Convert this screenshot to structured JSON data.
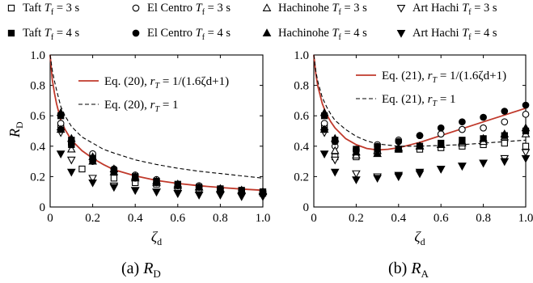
{
  "legend": [
    {
      "marker": "square-open",
      "name": "Taft",
      "suffix": " = 3 s"
    },
    {
      "marker": "circle-open",
      "name": "El Centro",
      "suffix": " = 3 s"
    },
    {
      "marker": "triangle-up-open",
      "name": "Hachinohe",
      "suffix": " = 3 s"
    },
    {
      "marker": "triangle-down-open",
      "name": "Art Hachi",
      "suffix": " = 3 s"
    },
    {
      "marker": "square-filled",
      "name": "Taft",
      "suffix": " = 4 s"
    },
    {
      "marker": "circle-filled",
      "name": "El Centro",
      "suffix": " = 4 s"
    },
    {
      "marker": "triangle-up-filled",
      "name": "Hachinohe",
      "suffix": " = 4 s"
    },
    {
      "marker": "triangle-down-filled",
      "name": "Art Hachi",
      "suffix": " = 4 s"
    }
  ],
  "legend_var": "T",
  "legend_sub": "f",
  "colors": {
    "curve": "#c0392b",
    "dashed": "#000000",
    "markers": "#000000"
  },
  "chart_data": [
    {
      "type": "line",
      "caption": "(a) ",
      "caption_sym": "R",
      "caption_sub": "D",
      "ylabel": "R",
      "ylabel_sub": "D",
      "xlabel": "ζ",
      "xlabel_sub": "d",
      "xlim": [
        0,
        1.0
      ],
      "ylim": [
        0,
        1.0
      ],
      "xticks": [
        0,
        0.2,
        0.4,
        0.6,
        0.8,
        1.0
      ],
      "xtick_labels": [
        "0",
        "0.2",
        "0.4",
        "0.6",
        "0.8",
        "1.0"
      ],
      "yticks": [
        0,
        0.2,
        0.4,
        0.6,
        0.8,
        1.0
      ],
      "ytick_labels": [
        "0",
        "0.2",
        "0.4",
        "0.6",
        "0.8",
        "1.0"
      ],
      "annotations": [
        {
          "eq": "Eq. (20),",
          "cond": "1/(1.6ζd+1)",
          "style": "solid"
        },
        {
          "eq": "Eq. (20),",
          "cond": "1",
          "style": "dashed"
        }
      ],
      "curves": [
        {
          "style": "solid",
          "x": [
            0,
            0.01,
            0.02,
            0.03,
            0.05,
            0.07,
            0.1,
            0.15,
            0.2,
            0.25,
            0.3,
            0.4,
            0.5,
            0.6,
            0.7,
            0.8,
            0.9,
            1.0
          ],
          "y": [
            1.0,
            0.84,
            0.75,
            0.68,
            0.57,
            0.51,
            0.44,
            0.37,
            0.32,
            0.28,
            0.245,
            0.205,
            0.175,
            0.155,
            0.14,
            0.128,
            0.118,
            0.11
          ]
        },
        {
          "style": "dashed",
          "x": [
            0,
            0.01,
            0.02,
            0.03,
            0.05,
            0.07,
            0.1,
            0.15,
            0.2,
            0.25,
            0.3,
            0.4,
            0.5,
            0.6,
            0.7,
            0.8,
            0.9,
            1.0
          ],
          "y": [
            1.0,
            0.9,
            0.83,
            0.77,
            0.66,
            0.6,
            0.53,
            0.46,
            0.42,
            0.38,
            0.355,
            0.31,
            0.28,
            0.255,
            0.235,
            0.22,
            0.205,
            0.19
          ]
        }
      ],
      "series": [
        {
          "name": "Taft Tf = 3 s",
          "marker": "square-open",
          "x": [
            0.05,
            0.1,
            0.15,
            0.2,
            0.3,
            0.4,
            0.5,
            0.6,
            0.7,
            0.8,
            0.9,
            1.0
          ],
          "y": [
            0.52,
            0.41,
            0.25,
            0.33,
            0.19,
            0.16,
            0.15,
            0.13,
            0.12,
            0.11,
            0.1,
            0.09
          ]
        },
        {
          "name": "El Centro Tf = 3 s",
          "marker": "circle-open",
          "x": [
            0.05,
            0.1,
            0.2,
            0.3,
            0.4,
            0.5,
            0.6,
            0.7,
            0.8,
            0.9,
            1.0
          ],
          "y": [
            0.55,
            0.43,
            0.35,
            0.25,
            0.21,
            0.18,
            0.15,
            0.14,
            0.12,
            0.11,
            0.1
          ]
        },
        {
          "name": "Hachinohe Tf = 3 s",
          "marker": "triangle-up-open",
          "x": [
            0.05,
            0.1,
            0.2,
            0.3,
            0.4,
            0.5,
            0.6,
            0.7,
            0.8,
            0.9,
            1.0
          ],
          "y": [
            0.51,
            0.38,
            0.3,
            0.23,
            0.19,
            0.16,
            0.14,
            0.13,
            0.12,
            0.11,
            0.1
          ]
        },
        {
          "name": "Art Hachi Tf = 3 s",
          "marker": "triangle-down-open",
          "x": [
            0.05,
            0.1,
            0.2,
            0.3,
            0.4,
            0.5,
            0.6,
            0.7,
            0.8,
            0.9,
            1.0
          ],
          "y": [
            0.49,
            0.31,
            0.19,
            0.14,
            0.11,
            0.1,
            0.09,
            0.08,
            0.08,
            0.07,
            0.07
          ]
        },
        {
          "name": "Taft Tf = 4 s",
          "marker": "square-filled",
          "x": [
            0.05,
            0.1,
            0.2,
            0.3,
            0.4,
            0.5,
            0.6,
            0.7,
            0.8,
            0.9,
            1.0
          ],
          "y": [
            0.6,
            0.44,
            0.32,
            0.24,
            0.2,
            0.17,
            0.15,
            0.13,
            0.12,
            0.11,
            0.1
          ]
        },
        {
          "name": "El Centro Tf = 4 s",
          "marker": "circle-filled",
          "x": [
            0.05,
            0.1,
            0.2,
            0.3,
            0.4,
            0.5,
            0.6,
            0.7,
            0.8,
            0.9,
            1.0
          ],
          "y": [
            0.51,
            0.41,
            0.3,
            0.23,
            0.19,
            0.16,
            0.14,
            0.13,
            0.12,
            0.11,
            0.1
          ]
        },
        {
          "name": "Hachinohe Tf = 4 s",
          "marker": "triangle-up-filled",
          "x": [
            0.05,
            0.1,
            0.2,
            0.3,
            0.4,
            0.5,
            0.6,
            0.7,
            0.8,
            0.9,
            1.0
          ],
          "y": [
            0.62,
            0.45,
            0.33,
            0.25,
            0.2,
            0.17,
            0.15,
            0.13,
            0.12,
            0.11,
            0.1
          ]
        },
        {
          "name": "Art Hachi Tf = 4 s",
          "marker": "triangle-down-filled",
          "x": [
            0.05,
            0.1,
            0.2,
            0.3,
            0.4,
            0.5,
            0.6,
            0.7,
            0.8,
            0.9,
            1.0
          ],
          "y": [
            0.35,
            0.23,
            0.16,
            0.13,
            0.11,
            0.1,
            0.09,
            0.08,
            0.08,
            0.07,
            0.07
          ]
        }
      ]
    },
    {
      "type": "line",
      "caption": "(b) ",
      "caption_sym": "R",
      "caption_sub": "A",
      "ylabel": "",
      "ylabel_sub": "",
      "xlabel": "ζ",
      "xlabel_sub": "d",
      "xlim": [
        0,
        1.0
      ],
      "ylim": [
        0,
        1.0
      ],
      "xticks": [
        0,
        0.2,
        0.4,
        0.6,
        0.8,
        1.0
      ],
      "xtick_labels": [
        "0",
        "0.2",
        "0.4",
        "0.6",
        "0.8",
        "1.0"
      ],
      "yticks": [
        0,
        0.2,
        0.4,
        0.6,
        0.8,
        1.0
      ],
      "ytick_labels": [
        "0",
        "0.2",
        "0.4",
        "0.6",
        "0.8",
        "1.0"
      ],
      "annotations": [
        {
          "eq": "Eq. (21),",
          "cond": "1/(1.6ζd+1)",
          "style": "solid"
        },
        {
          "eq": "Eq. (21),",
          "cond": "1",
          "style": "dashed"
        }
      ],
      "curves": [
        {
          "style": "solid",
          "x": [
            0,
            0.01,
            0.02,
            0.04,
            0.06,
            0.08,
            0.1,
            0.15,
            0.2,
            0.25,
            0.3,
            0.35,
            0.4,
            0.5,
            0.6,
            0.7,
            0.8,
            0.9,
            1.0
          ],
          "y": [
            1.0,
            0.87,
            0.79,
            0.68,
            0.61,
            0.56,
            0.52,
            0.45,
            0.41,
            0.385,
            0.375,
            0.38,
            0.39,
            0.425,
            0.47,
            0.515,
            0.56,
            0.605,
            0.65
          ]
        },
        {
          "style": "dashed",
          "x": [
            0,
            0.01,
            0.02,
            0.04,
            0.06,
            0.08,
            0.1,
            0.15,
            0.2,
            0.25,
            0.3,
            0.4,
            0.5,
            0.6,
            0.7,
            0.8,
            0.9,
            1.0
          ],
          "y": [
            1.0,
            0.89,
            0.82,
            0.72,
            0.66,
            0.61,
            0.57,
            0.51,
            0.465,
            0.435,
            0.415,
            0.4,
            0.4,
            0.405,
            0.41,
            0.42,
            0.43,
            0.44
          ]
        }
      ],
      "series": [
        {
          "name": "Taft Tf = 3 s",
          "marker": "square-open",
          "x": [
            0.05,
            0.1,
            0.2,
            0.3,
            0.4,
            0.5,
            0.6,
            0.7,
            0.8,
            0.9,
            1.0
          ],
          "y": [
            0.52,
            0.33,
            0.33,
            0.36,
            0.38,
            0.38,
            0.39,
            0.4,
            0.41,
            0.42,
            0.4
          ]
        },
        {
          "name": "El Centro Tf = 3 s",
          "marker": "circle-open",
          "x": [
            0.05,
            0.1,
            0.2,
            0.3,
            0.4,
            0.5,
            0.6,
            0.7,
            0.8,
            0.9,
            1.0
          ],
          "y": [
            0.55,
            0.4,
            0.38,
            0.41,
            0.44,
            0.47,
            0.48,
            0.51,
            0.52,
            0.56,
            0.61
          ]
        },
        {
          "name": "Hachinohe Tf = 3 s",
          "marker": "triangle-up-open",
          "x": [
            0.05,
            0.1,
            0.2,
            0.3,
            0.4,
            0.5,
            0.6,
            0.7,
            0.8,
            0.9,
            1.0
          ],
          "y": [
            0.51,
            0.37,
            0.34,
            0.37,
            0.39,
            0.4,
            0.41,
            0.42,
            0.43,
            0.46,
            0.48
          ]
        },
        {
          "name": "Art Hachi Tf = 3 s",
          "marker": "triangle-down-open",
          "x": [
            0.05,
            0.1,
            0.2,
            0.3,
            0.4,
            0.5,
            0.6,
            0.7,
            0.8,
            0.9,
            1.0
          ],
          "y": [
            0.49,
            0.31,
            0.22,
            0.2,
            0.2,
            0.22,
            0.25,
            0.27,
            0.29,
            0.32,
            0.36
          ]
        },
        {
          "name": "Taft Tf = 4 s",
          "marker": "square-filled",
          "x": [
            0.05,
            0.1,
            0.2,
            0.3,
            0.4,
            0.5,
            0.6,
            0.7,
            0.8,
            0.9,
            1.0
          ],
          "y": [
            0.6,
            0.44,
            0.38,
            0.38,
            0.38,
            0.4,
            0.42,
            0.44,
            0.45,
            0.47,
            0.5
          ]
        },
        {
          "name": "El Centro Tf = 4 s",
          "marker": "circle-filled",
          "x": [
            0.05,
            0.1,
            0.2,
            0.3,
            0.4,
            0.5,
            0.6,
            0.7,
            0.8,
            0.9,
            1.0
          ],
          "y": [
            0.51,
            0.43,
            0.37,
            0.4,
            0.43,
            0.47,
            0.52,
            0.56,
            0.59,
            0.63,
            0.67
          ]
        },
        {
          "name": "Hachinohe Tf = 4 s",
          "marker": "triangle-up-filled",
          "x": [
            0.05,
            0.1,
            0.2,
            0.3,
            0.4,
            0.5,
            0.6,
            0.7,
            0.8,
            0.9,
            1.0
          ],
          "y": [
            0.62,
            0.45,
            0.36,
            0.35,
            0.38,
            0.4,
            0.41,
            0.43,
            0.45,
            0.48,
            0.52
          ]
        },
        {
          "name": "Art Hachi Tf = 4 s",
          "marker": "triangle-down-filled",
          "x": [
            0.05,
            0.1,
            0.2,
            0.3,
            0.4,
            0.5,
            0.6,
            0.7,
            0.8,
            0.9,
            1.0
          ],
          "y": [
            0.35,
            0.23,
            0.18,
            0.19,
            0.21,
            0.23,
            0.25,
            0.27,
            0.29,
            0.3,
            0.32
          ]
        }
      ]
    }
  ]
}
